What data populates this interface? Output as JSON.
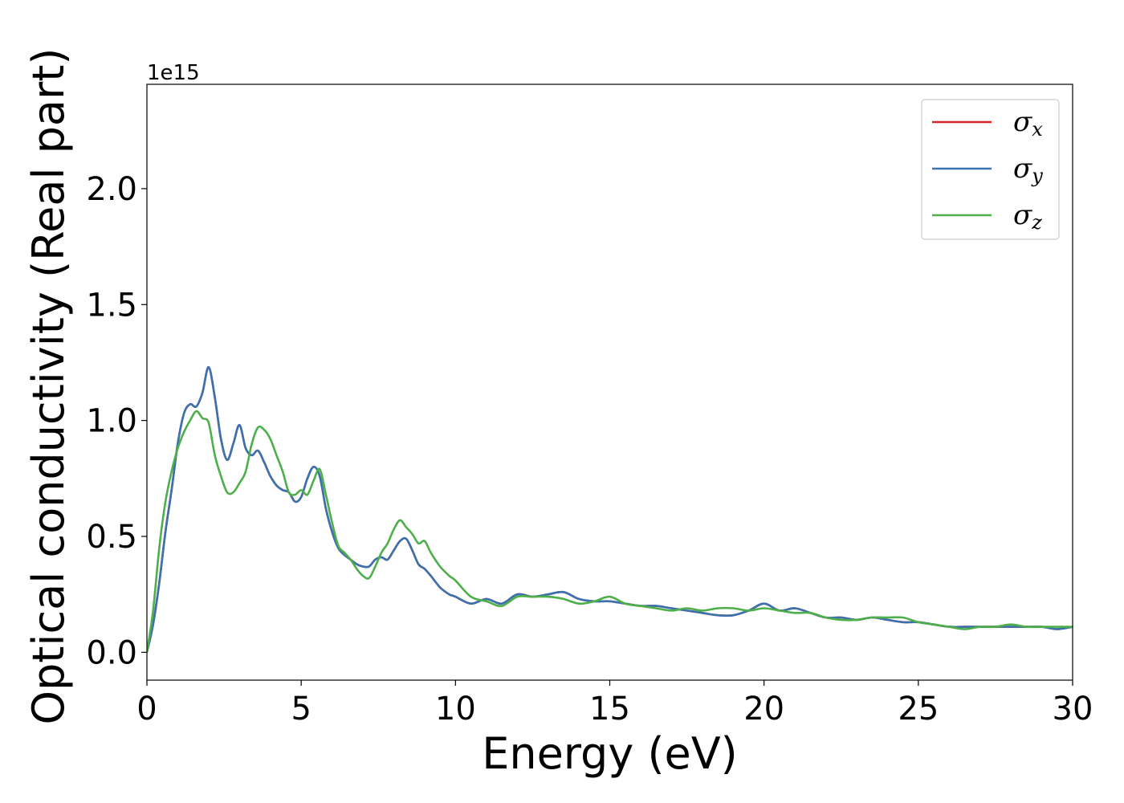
{
  "chart_data": {
    "type": "line",
    "xlabel": "Energy (eV)",
    "ylabel": "Optical conductivity (Real part)",
    "y_offset_label": "1e15",
    "xlim": [
      0,
      30
    ],
    "ylim": [
      -0.12,
      2.45
    ],
    "xticks": [
      0,
      5,
      10,
      15,
      20,
      25,
      30
    ],
    "xtick_labels": [
      "0",
      "5",
      "10",
      "15",
      "20",
      "25",
      "30"
    ],
    "yticks": [
      0.0,
      0.5,
      1.0,
      1.5,
      2.0
    ],
    "ytick_labels": [
      "0.0",
      "0.5",
      "1.0",
      "1.5",
      "2.0"
    ],
    "grid": false,
    "legend_position": "top-right",
    "series": [
      {
        "name": "σx",
        "symbol": "σ",
        "subscript": "x",
        "color": "#d62728",
        "x": [
          0,
          0.2,
          0.4,
          0.6,
          0.8,
          1.0,
          1.2,
          1.4,
          1.6,
          1.8,
          2.0,
          2.2,
          2.4,
          2.6,
          2.8,
          3.0,
          3.2,
          3.4,
          3.6,
          3.8,
          4.0,
          4.2,
          4.4,
          4.6,
          4.8,
          5.0,
          5.2,
          5.4,
          5.6,
          5.8,
          6.0,
          6.2,
          6.4,
          6.6,
          6.8,
          7.0,
          7.2,
          7.4,
          7.6,
          7.8,
          8.0,
          8.2,
          8.4,
          8.6,
          8.8,
          9.0,
          9.2,
          9.5,
          9.8,
          10.0,
          10.5,
          11.0,
          11.5,
          12.0,
          12.5,
          13.0,
          13.5,
          14.0,
          14.5,
          15.0,
          15.5,
          16.0,
          16.5,
          17.0,
          17.5,
          18.0,
          18.5,
          19.0,
          19.5,
          20.0,
          20.5,
          21.0,
          21.5,
          22.0,
          22.5,
          23.0,
          23.5,
          24.0,
          24.5,
          25.0,
          25.5,
          26.0,
          26.5,
          27.0,
          27.5,
          28.0,
          28.5,
          29.0,
          29.5,
          30.0
        ],
        "y": [
          0.0,
          0.12,
          0.3,
          0.52,
          0.7,
          0.9,
          1.03,
          1.07,
          1.06,
          1.12,
          1.23,
          1.1,
          0.92,
          0.83,
          0.9,
          0.98,
          0.88,
          0.85,
          0.87,
          0.82,
          0.76,
          0.72,
          0.7,
          0.69,
          0.65,
          0.67,
          0.75,
          0.8,
          0.76,
          0.62,
          0.52,
          0.45,
          0.42,
          0.4,
          0.38,
          0.37,
          0.37,
          0.4,
          0.41,
          0.4,
          0.44,
          0.48,
          0.49,
          0.44,
          0.38,
          0.36,
          0.33,
          0.28,
          0.25,
          0.24,
          0.21,
          0.23,
          0.21,
          0.25,
          0.24,
          0.25,
          0.26,
          0.23,
          0.22,
          0.22,
          0.21,
          0.2,
          0.2,
          0.19,
          0.18,
          0.17,
          0.16,
          0.16,
          0.18,
          0.21,
          0.18,
          0.19,
          0.17,
          0.15,
          0.15,
          0.14,
          0.15,
          0.14,
          0.13,
          0.13,
          0.12,
          0.11,
          0.11,
          0.11,
          0.11,
          0.11,
          0.11,
          0.11,
          0.1,
          0.11
        ]
      },
      {
        "name": "σy",
        "symbol": "σ",
        "subscript": "y",
        "color": "#3a72b0",
        "x": [
          0,
          0.2,
          0.4,
          0.6,
          0.8,
          1.0,
          1.2,
          1.4,
          1.6,
          1.8,
          2.0,
          2.2,
          2.4,
          2.6,
          2.8,
          3.0,
          3.2,
          3.4,
          3.6,
          3.8,
          4.0,
          4.2,
          4.4,
          4.6,
          4.8,
          5.0,
          5.2,
          5.4,
          5.6,
          5.8,
          6.0,
          6.2,
          6.4,
          6.6,
          6.8,
          7.0,
          7.2,
          7.4,
          7.6,
          7.8,
          8.0,
          8.2,
          8.4,
          8.6,
          8.8,
          9.0,
          9.2,
          9.5,
          9.8,
          10.0,
          10.5,
          11.0,
          11.5,
          12.0,
          12.5,
          13.0,
          13.5,
          14.0,
          14.5,
          15.0,
          15.5,
          16.0,
          16.5,
          17.0,
          17.5,
          18.0,
          18.5,
          19.0,
          19.5,
          20.0,
          20.5,
          21.0,
          21.5,
          22.0,
          22.5,
          23.0,
          23.5,
          24.0,
          24.5,
          25.0,
          25.5,
          26.0,
          26.5,
          27.0,
          27.5,
          28.0,
          28.5,
          29.0,
          29.5,
          30.0
        ],
        "y": [
          0.0,
          0.12,
          0.3,
          0.52,
          0.7,
          0.9,
          1.03,
          1.07,
          1.06,
          1.12,
          1.23,
          1.1,
          0.92,
          0.83,
          0.9,
          0.98,
          0.88,
          0.85,
          0.87,
          0.82,
          0.76,
          0.72,
          0.7,
          0.69,
          0.65,
          0.67,
          0.75,
          0.8,
          0.76,
          0.62,
          0.52,
          0.45,
          0.42,
          0.4,
          0.38,
          0.37,
          0.37,
          0.4,
          0.41,
          0.4,
          0.44,
          0.48,
          0.49,
          0.44,
          0.38,
          0.36,
          0.33,
          0.28,
          0.25,
          0.24,
          0.21,
          0.23,
          0.21,
          0.25,
          0.24,
          0.25,
          0.26,
          0.23,
          0.22,
          0.22,
          0.21,
          0.2,
          0.2,
          0.19,
          0.18,
          0.17,
          0.16,
          0.16,
          0.18,
          0.21,
          0.18,
          0.19,
          0.17,
          0.15,
          0.15,
          0.14,
          0.15,
          0.14,
          0.13,
          0.13,
          0.12,
          0.11,
          0.11,
          0.11,
          0.11,
          0.11,
          0.11,
          0.11,
          0.1,
          0.11
        ]
      },
      {
        "name": "σz",
        "symbol": "σ",
        "subscript": "z",
        "color": "#4daf4a",
        "x": [
          0,
          0.2,
          0.4,
          0.6,
          0.8,
          1.0,
          1.2,
          1.4,
          1.6,
          1.8,
          2.0,
          2.2,
          2.4,
          2.6,
          2.8,
          3.0,
          3.2,
          3.4,
          3.6,
          3.8,
          4.0,
          4.2,
          4.4,
          4.6,
          4.8,
          5.0,
          5.2,
          5.4,
          5.6,
          5.8,
          6.0,
          6.2,
          6.4,
          6.6,
          6.8,
          7.0,
          7.2,
          7.4,
          7.6,
          7.8,
          8.0,
          8.2,
          8.4,
          8.6,
          8.8,
          9.0,
          9.2,
          9.5,
          9.8,
          10.0,
          10.5,
          11.0,
          11.5,
          12.0,
          12.5,
          13.0,
          13.5,
          14.0,
          14.5,
          15.0,
          15.5,
          16.0,
          16.5,
          17.0,
          17.5,
          18.0,
          18.5,
          19.0,
          19.5,
          20.0,
          20.5,
          21.0,
          21.5,
          22.0,
          22.5,
          23.0,
          23.5,
          24.0,
          24.5,
          25.0,
          25.5,
          26.0,
          26.5,
          27.0,
          27.5,
          28.0,
          28.5,
          29.0,
          29.5,
          30.0
        ],
        "y": [
          0.0,
          0.18,
          0.45,
          0.65,
          0.78,
          0.88,
          0.95,
          1.0,
          1.04,
          1.01,
          0.99,
          0.85,
          0.76,
          0.69,
          0.69,
          0.73,
          0.78,
          0.9,
          0.97,
          0.96,
          0.92,
          0.85,
          0.78,
          0.69,
          0.68,
          0.7,
          0.68,
          0.74,
          0.79,
          0.68,
          0.56,
          0.46,
          0.43,
          0.4,
          0.36,
          0.33,
          0.32,
          0.37,
          0.43,
          0.47,
          0.53,
          0.57,
          0.54,
          0.51,
          0.47,
          0.48,
          0.43,
          0.37,
          0.33,
          0.31,
          0.24,
          0.22,
          0.2,
          0.24,
          0.24,
          0.24,
          0.23,
          0.21,
          0.22,
          0.24,
          0.21,
          0.2,
          0.19,
          0.18,
          0.19,
          0.18,
          0.19,
          0.19,
          0.18,
          0.19,
          0.18,
          0.17,
          0.17,
          0.15,
          0.14,
          0.14,
          0.15,
          0.15,
          0.15,
          0.13,
          0.12,
          0.11,
          0.1,
          0.11,
          0.11,
          0.12,
          0.11,
          0.11,
          0.11,
          0.11
        ]
      }
    ]
  }
}
